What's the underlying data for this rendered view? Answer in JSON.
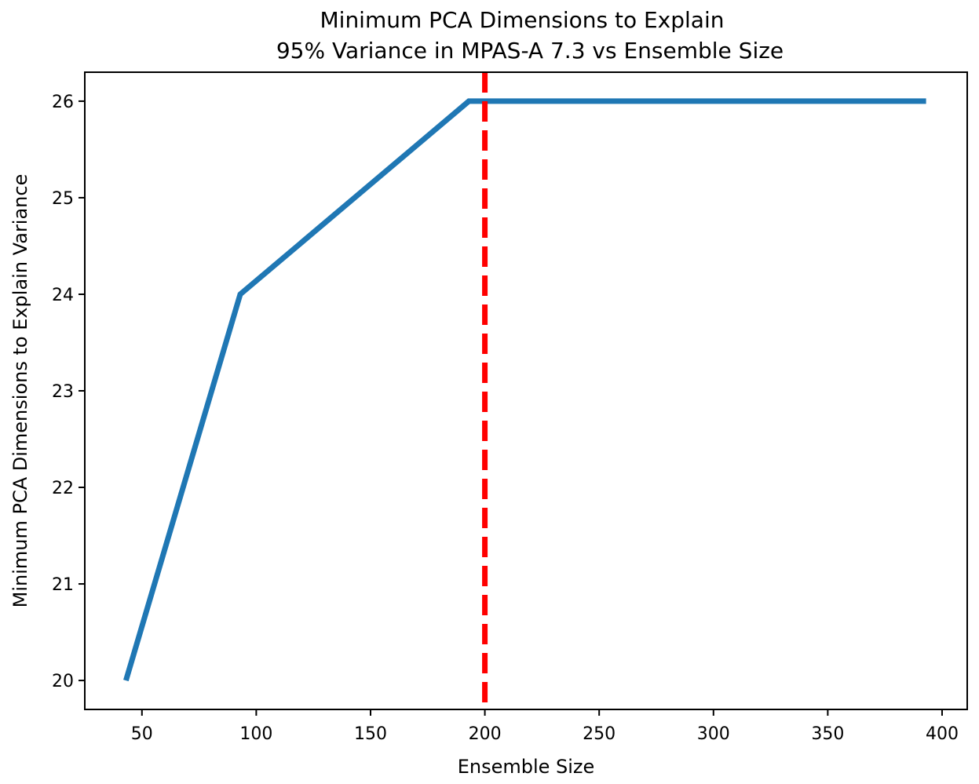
{
  "chart_data": {
    "type": "line",
    "title_line1": "Minimum PCA Dimensions to Explain",
    "title_line2": "95% Variance in MPAS-A 7.3 vs Ensemble Size",
    "xlabel": "Ensemble Size",
    "ylabel": "Minimum PCA Dimensions to Explain Variance",
    "xlim": [
      25,
      411
    ],
    "ylim": [
      19.7,
      26.3
    ],
    "xticks": [
      50,
      100,
      150,
      200,
      250,
      300,
      350,
      400
    ],
    "yticks": [
      20,
      21,
      22,
      23,
      24,
      25,
      26
    ],
    "grid": false,
    "series": [
      {
        "color": "#1f77b4",
        "x": [
          43,
          93,
          193,
          393
        ],
        "y": [
          20,
          24,
          26,
          26
        ]
      }
    ],
    "reference_line": {
      "orientation": "vertical",
      "x": 200,
      "color": "#ff0000",
      "style": "dashed"
    }
  }
}
